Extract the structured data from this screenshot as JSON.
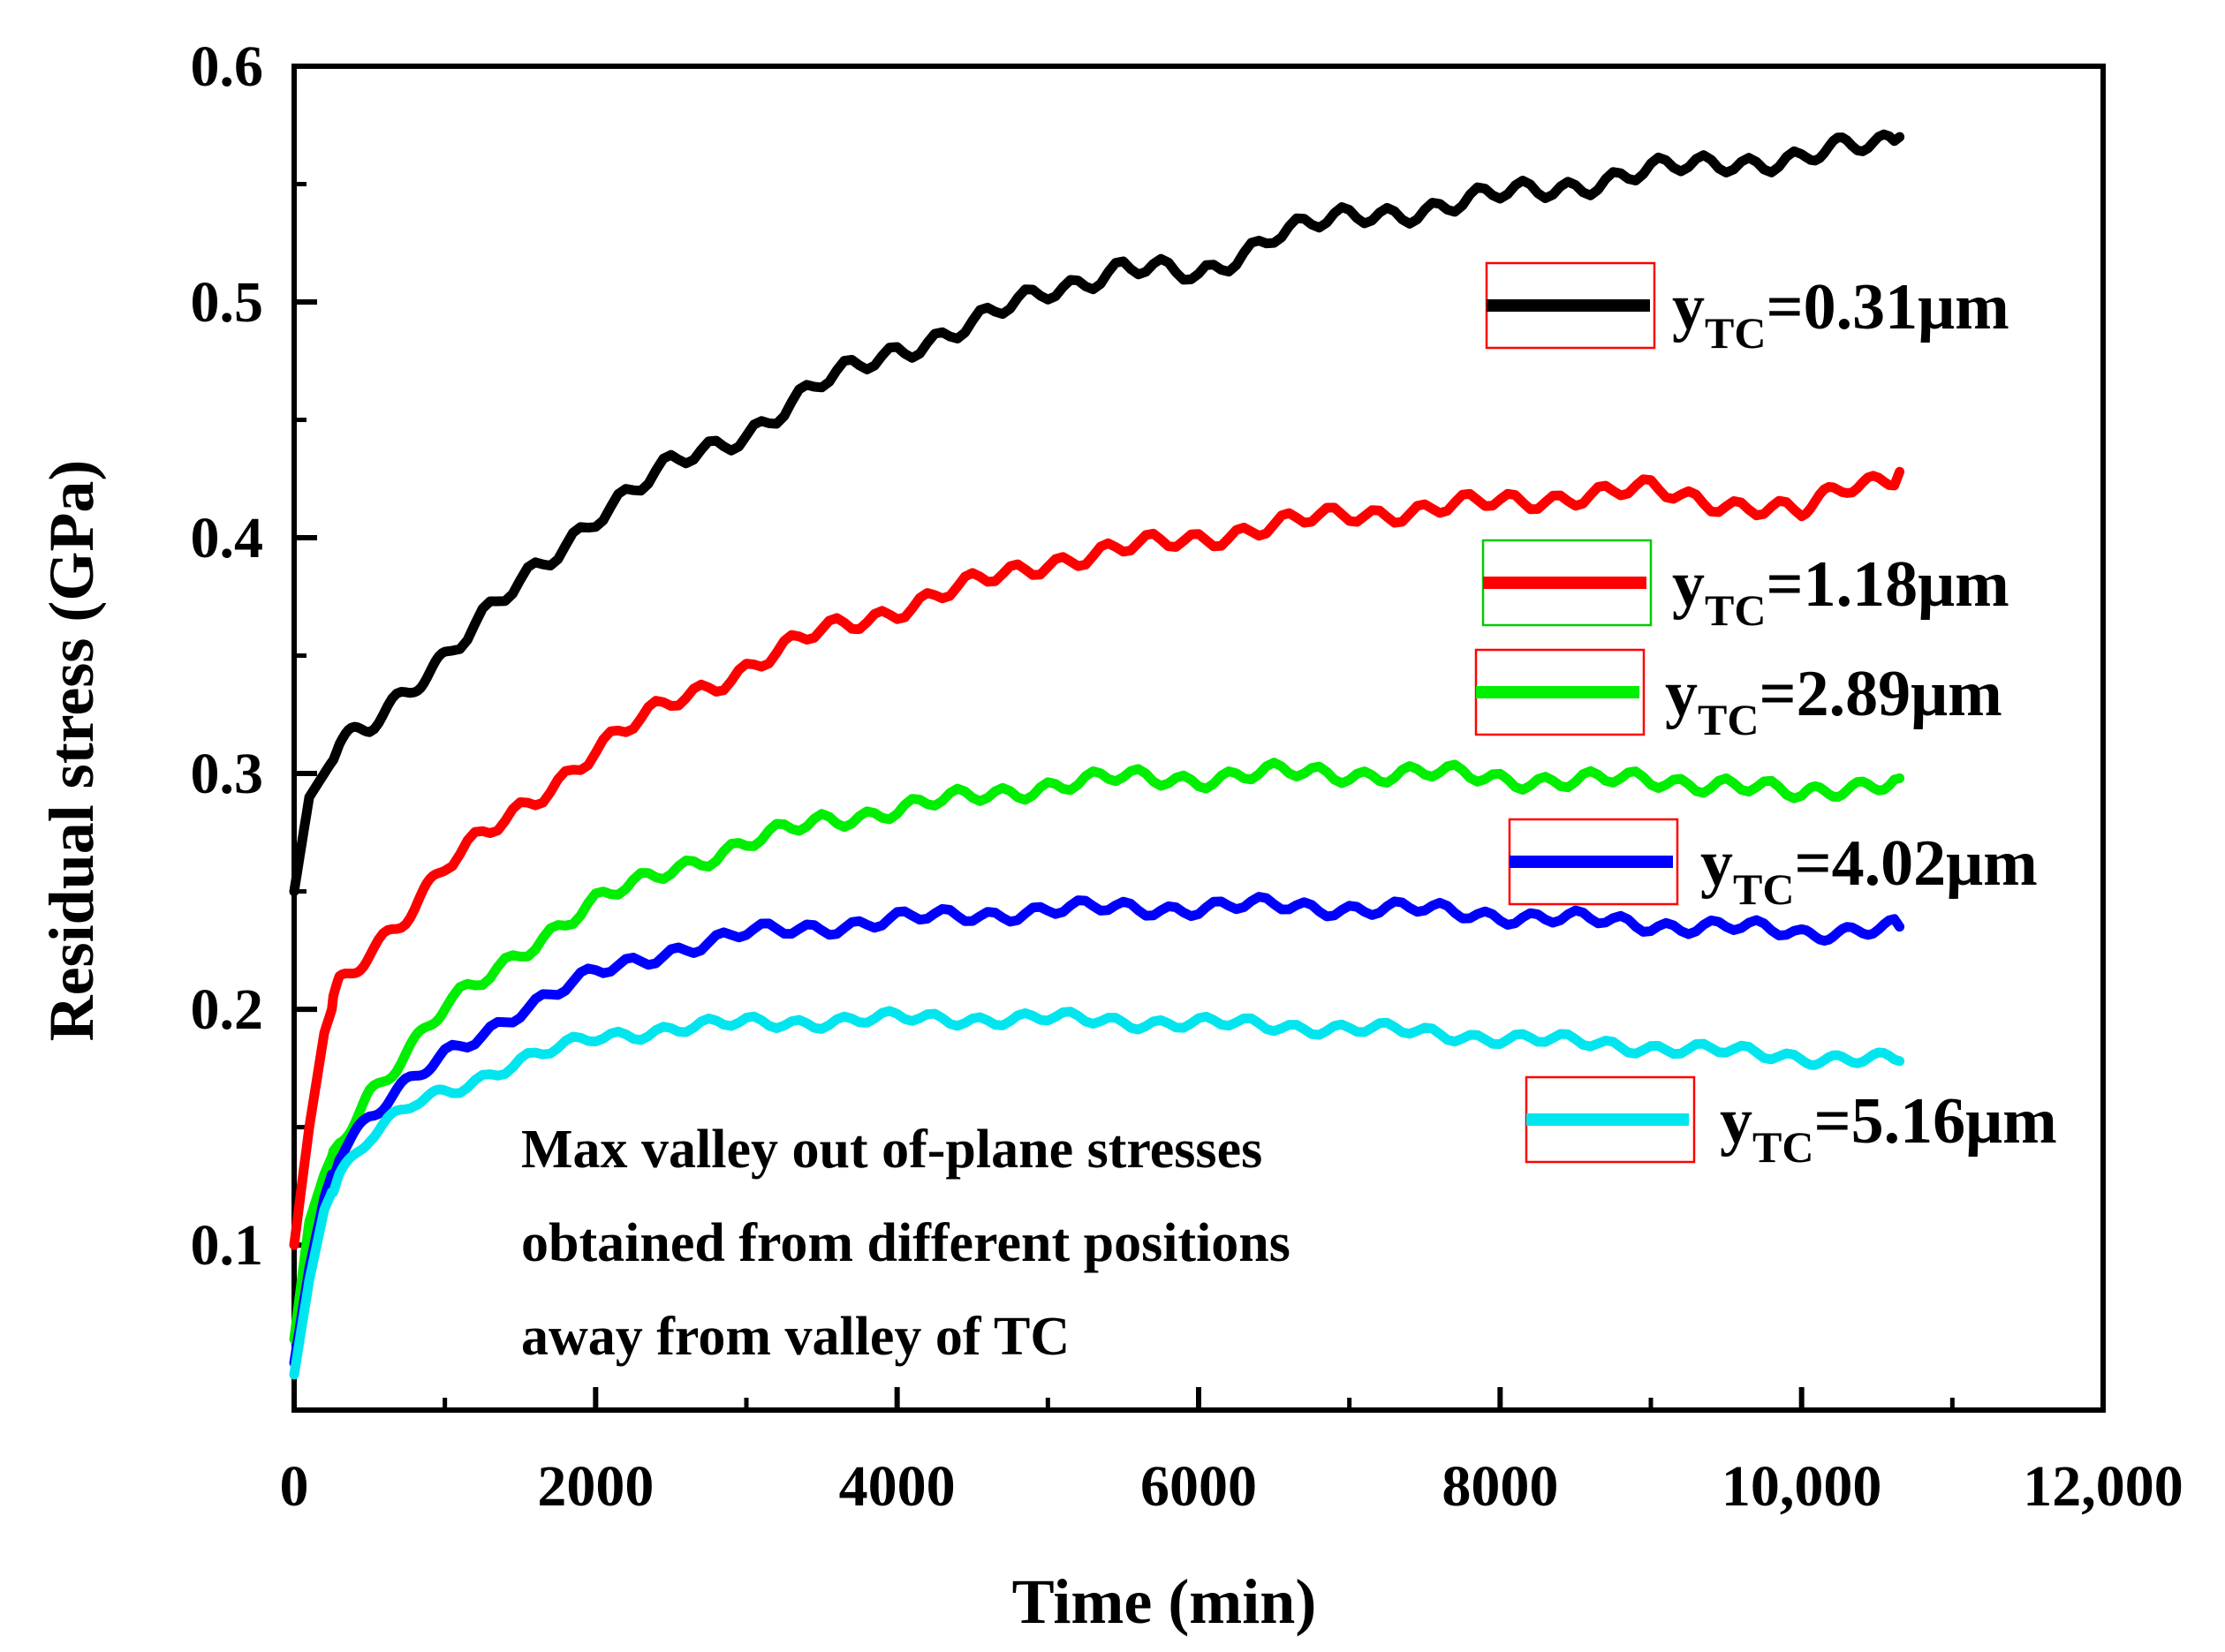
{
  "chart_data": {
    "type": "line",
    "title": "",
    "xlabel": "Time (min)",
    "ylabel": "Residual stress (GPa)",
    "xlim": [
      0,
      12000
    ],
    "ylim": [
      0.03,
      0.6
    ],
    "x_ticks": [
      0,
      2000,
      4000,
      6000,
      8000,
      10000,
      12000
    ],
    "x_tick_labels": [
      "0",
      "2000",
      "4000",
      "6000",
      "8000",
      "10,000",
      "12,000"
    ],
    "y_ticks": [
      0.1,
      0.2,
      0.3,
      0.4,
      0.5,
      0.6
    ],
    "y_tick_labels": [
      "0.1",
      "0.2",
      "0.3",
      "0.4",
      "0.5",
      "0.6"
    ],
    "grid": false,
    "legend_position": "right",
    "annotation": [
      "Max valley out of-plane stresses",
      "obtained from different positions",
      "away from valley of TC"
    ],
    "series": [
      {
        "name": "yTC=0.31μm",
        "label_main": "y",
        "label_sub": "TC",
        "label_value": "=0.31μm",
        "color": "#000000",
        "x": [
          0,
          100,
          300,
          500,
          800,
          1000,
          1500,
          2000,
          2500,
          3000,
          3500,
          4000,
          4500,
          5000,
          5500,
          6000,
          6500,
          7000,
          7500,
          8000,
          8500,
          9000,
          9500,
          10000,
          10300,
          10650
        ],
        "y": [
          0.25,
          0.29,
          0.31,
          0.32,
          0.34,
          0.35,
          0.38,
          0.41,
          0.43,
          0.445,
          0.465,
          0.48,
          0.49,
          0.505,
          0.515,
          0.51,
          0.53,
          0.535,
          0.54,
          0.545,
          0.55,
          0.555,
          0.56,
          0.56,
          0.565,
          0.57
        ]
      },
      {
        "name": "yTC=1.18μm",
        "label_main": "y",
        "label_sub": "TC",
        "label_value": "=1.18μm",
        "color": "#ff0000",
        "x": [
          0,
          100,
          200,
          300,
          500,
          800,
          1000,
          1500,
          2000,
          2500,
          3000,
          3500,
          4000,
          4500,
          5000,
          5500,
          6000,
          6500,
          7000,
          7500,
          8000,
          8500,
          9000,
          9500,
          10000,
          10300,
          10650
        ],
        "y": [
          0.1,
          0.15,
          0.19,
          0.21,
          0.225,
          0.245,
          0.26,
          0.285,
          0.31,
          0.33,
          0.345,
          0.36,
          0.37,
          0.38,
          0.39,
          0.395,
          0.4,
          0.405,
          0.41,
          0.412,
          0.415,
          0.418,
          0.42,
          0.415,
          0.41,
          0.422,
          0.428
        ]
      },
      {
        "name": "yTC=2.89μm",
        "label_main": "y",
        "label_sub": "TC",
        "label_value": "=2.89μm",
        "color": "#00ee00",
        "x": [
          0,
          100,
          200,
          300,
          500,
          800,
          1000,
          1500,
          2000,
          2500,
          3000,
          3500,
          4000,
          4500,
          5000,
          5500,
          6000,
          6500,
          7000,
          7500,
          8000,
          8500,
          9000,
          9500,
          10000,
          10300,
          10650
        ],
        "y": [
          0.06,
          0.11,
          0.13,
          0.145,
          0.165,
          0.185,
          0.2,
          0.225,
          0.245,
          0.26,
          0.27,
          0.28,
          0.285,
          0.29,
          0.295,
          0.298,
          0.298,
          0.3,
          0.3,
          0.3,
          0.298,
          0.297,
          0.297,
          0.296,
          0.29,
          0.295,
          0.298
        ]
      },
      {
        "name": "yTC=4.02μm",
        "label_main": "y",
        "label_sub": "TC",
        "label_value": "=4.02μm",
        "color": "#0000ff",
        "x": [
          0,
          100,
          200,
          300,
          500,
          800,
          1000,
          1500,
          2000,
          2500,
          3000,
          3500,
          4000,
          4500,
          5000,
          5500,
          6000,
          6500,
          7000,
          7500,
          8000,
          8500,
          9000,
          9500,
          10000,
          10300,
          10650
        ],
        "y": [
          0.05,
          0.09,
          0.12,
          0.14,
          0.155,
          0.17,
          0.18,
          0.2,
          0.215,
          0.225,
          0.232,
          0.235,
          0.238,
          0.24,
          0.242,
          0.243,
          0.243,
          0.244,
          0.243,
          0.242,
          0.24,
          0.238,
          0.236,
          0.235,
          0.232,
          0.234,
          0.235
        ]
      },
      {
        "name": "yTC=5.16μm",
        "label_main": "y",
        "label_sub": "TC",
        "label_value": "=5.16μm",
        "color": "#00e5ee",
        "x": [
          0,
          100,
          200,
          300,
          500,
          800,
          1000,
          1500,
          2000,
          2500,
          3000,
          3500,
          4000,
          4500,
          5000,
          5500,
          6000,
          6500,
          7000,
          7500,
          8000,
          8500,
          9000,
          9500,
          10000,
          10300,
          10650
        ],
        "y": [
          0.045,
          0.085,
          0.115,
          0.13,
          0.145,
          0.16,
          0.165,
          0.178,
          0.188,
          0.192,
          0.194,
          0.195,
          0.196,
          0.196,
          0.196,
          0.195,
          0.194,
          0.193,
          0.192,
          0.19,
          0.188,
          0.186,
          0.184,
          0.182,
          0.18,
          0.179,
          0.178
        ]
      }
    ]
  }
}
